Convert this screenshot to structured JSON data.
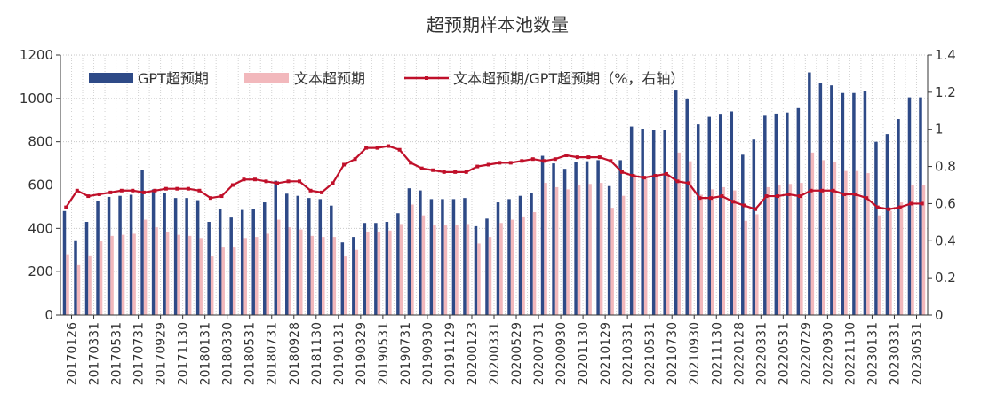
{
  "chart_data": {
    "type": "bar",
    "title": "超预期样本池数量",
    "legend_position": "top-left",
    "grid": true,
    "y_left": {
      "lim": [
        0,
        1200
      ],
      "ticks": [
        "0",
        "200",
        "400",
        "600",
        "800",
        "1000",
        "1200"
      ]
    },
    "y_right": {
      "lim": [
        0,
        1.4
      ],
      "ticks": [
        "0",
        "0.2",
        "0.4",
        "0.6",
        "0.8",
        "1",
        "1.2",
        "1.4"
      ]
    },
    "x_tick_labels": [
      "20170126",
      "20170331",
      "20170531",
      "20170731",
      "20170929",
      "20171130",
      "20180131",
      "20180330",
      "20180531",
      "20180731",
      "20180928",
      "20181130",
      "20190131",
      "20190329",
      "20190531",
      "20190731",
      "20190930",
      "20191129",
      "20200123",
      "20200331",
      "20200529",
      "20200731",
      "20200930",
      "20201130",
      "20210129",
      "20210331",
      "20210531",
      "20210730",
      "20210930",
      "20211130",
      "20220128",
      "20220331",
      "20220531",
      "20220729",
      "20220930",
      "20221130",
      "20230131",
      "20230331",
      "20230531"
    ],
    "series": [
      {
        "name": "GPT超预期",
        "type": "bar",
        "axis": "left",
        "color": "#2e4a87",
        "values": [
          480,
          345,
          430,
          525,
          545,
          550,
          555,
          670,
          580,
          565,
          540,
          540,
          530,
          430,
          490,
          450,
          485,
          490,
          520,
          620,
          560,
          550,
          540,
          535,
          505,
          335,
          360,
          425,
          425,
          430,
          470,
          585,
          575,
          535,
          535,
          535,
          540,
          410,
          445,
          520,
          535,
          550,
          565,
          735,
          700,
          675,
          705,
          710,
          715,
          595,
          715,
          870,
          860,
          855,
          855,
          1040,
          1000,
          880,
          915,
          925,
          940,
          740,
          810,
          920,
          930,
          935,
          955,
          1120,
          1070,
          1060,
          1025,
          1025,
          1035,
          800,
          835,
          905,
          1005,
          1005
        ]
      },
      {
        "name": "文本超预期",
        "type": "bar",
        "axis": "left",
        "color": "#f2b8bc",
        "values": [
          280,
          230,
          275,
          340,
          365,
          370,
          375,
          440,
          405,
          385,
          370,
          365,
          355,
          270,
          315,
          315,
          355,
          360,
          375,
          440,
          405,
          395,
          365,
          360,
          360,
          270,
          300,
          385,
          385,
          390,
          420,
          510,
          460,
          415,
          415,
          415,
          420,
          330,
          360,
          425,
          440,
          455,
          475,
          610,
          590,
          580,
          600,
          605,
          610,
          495,
          550,
          650,
          640,
          640,
          650,
          750,
          710,
          555,
          580,
          590,
          575,
          435,
          465,
          590,
          600,
          605,
          610,
          750,
          715,
          705,
          665,
          665,
          655,
          460,
          480,
          520,
          600,
          600
        ]
      },
      {
        "name": "文本超预期/GPT超预期（%，右轴）",
        "type": "line",
        "axis": "right",
        "color": "#c0102a",
        "values": [
          0.58,
          0.67,
          0.64,
          0.65,
          0.66,
          0.67,
          0.67,
          0.66,
          0.67,
          0.68,
          0.68,
          0.68,
          0.67,
          0.63,
          0.64,
          0.7,
          0.73,
          0.73,
          0.72,
          0.71,
          0.72,
          0.72,
          0.67,
          0.66,
          0.71,
          0.81,
          0.84,
          0.9,
          0.9,
          0.91,
          0.89,
          0.82,
          0.79,
          0.78,
          0.77,
          0.77,
          0.77,
          0.8,
          0.81,
          0.82,
          0.82,
          0.83,
          0.84,
          0.83,
          0.84,
          0.86,
          0.85,
          0.85,
          0.85,
          0.83,
          0.77,
          0.75,
          0.74,
          0.75,
          0.76,
          0.72,
          0.71,
          0.63,
          0.63,
          0.64,
          0.61,
          0.59,
          0.57,
          0.64,
          0.64,
          0.65,
          0.64,
          0.67,
          0.67,
          0.67,
          0.65,
          0.65,
          0.63,
          0.58,
          0.57,
          0.58,
          0.6,
          0.6
        ]
      }
    ]
  }
}
